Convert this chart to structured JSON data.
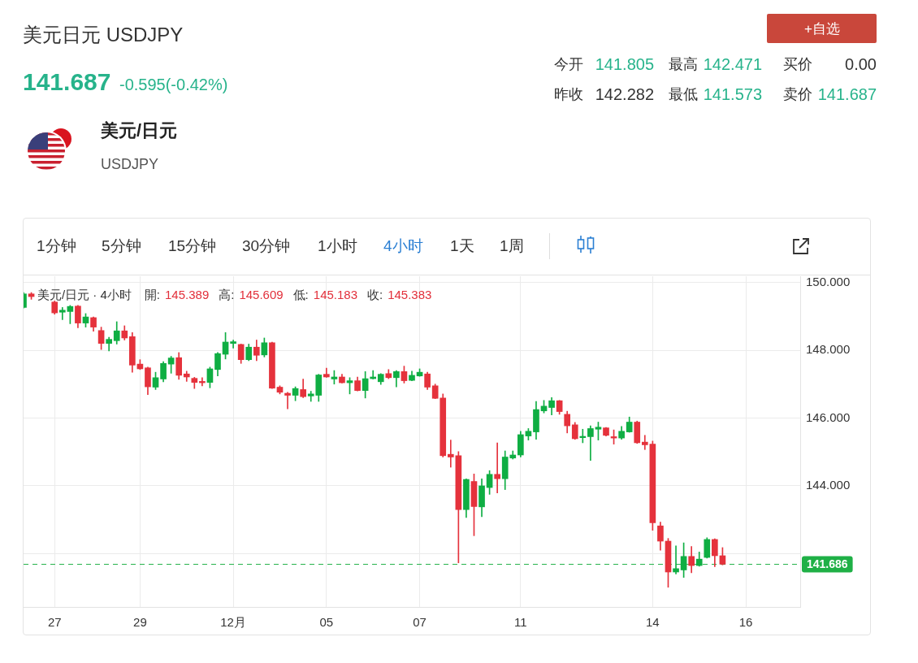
{
  "chart_data": {
    "type": "candlestick",
    "title": "美元日元 USDJPY",
    "subtitle": "141.687",
    "annotations": [
      "-0.595(-0.42%)",
      "今开",
      "141.805",
      "最高",
      "142.471",
      "买价",
      "0.00",
      "昨收",
      "142.282",
      "最低",
      "141.573",
      "卖价",
      "141.687",
      "+自选",
      "美元/日元",
      "USDJPY",
      "1分钟",
      "5分钟",
      "15分钟",
      "30分钟",
      "1小时",
      "4小时",
      "1天",
      "1周",
      "美元/日元 · 4小时",
      "開: 145.389",
      "高: 145.609",
      "低: 145.183",
      "收: 145.383"
    ],
    "categories": [
      null,
      null,
      null,
      null,
      "27",
      null,
      null,
      null,
      null,
      null,
      null,
      null,
      null,
      null,
      null,
      "29",
      null,
      null,
      null,
      null,
      null,
      null,
      null,
      null,
      null,
      null,
      null,
      "12月",
      null,
      null,
      null,
      null,
      null,
      null,
      null,
      null,
      null,
      null,
      null,
      "05",
      null,
      null,
      null,
      null,
      null,
      null,
      null,
      null,
      null,
      null,
      null,
      "07",
      null,
      null,
      null,
      null,
      null,
      null,
      null,
      null,
      null,
      null,
      null,
      null,
      "11",
      null,
      null,
      null,
      null,
      null,
      null,
      null,
      null,
      null,
      null,
      null,
      null,
      null,
      null,
      null,
      null,
      "14",
      null,
      null,
      null,
      null,
      null,
      null,
      null,
      null,
      null,
      null,
      null,
      "16",
      null,
      null,
      null,
      null,
      null,
      null,
      null
    ],
    "ohlc": [
      [
        149.26,
        149.7,
        149.24,
        149.66
      ],
      [
        149.66,
        149.7,
        149.5,
        149.58
      ],
      null,
      null,
      [
        149.42,
        149.45,
        149.06,
        149.1
      ],
      [
        149.12,
        149.26,
        148.9,
        149.18
      ],
      [
        149.14,
        149.32,
        148.78,
        149.29
      ],
      [
        149.3,
        149.32,
        148.66,
        148.8
      ],
      [
        148.8,
        149.08,
        148.68,
        148.98
      ],
      [
        148.96,
        148.98,
        148.56,
        148.68
      ],
      [
        148.58,
        148.68,
        148.02,
        148.2
      ],
      [
        148.2,
        148.38,
        147.98,
        148.32
      ],
      [
        148.28,
        148.84,
        148.18,
        148.57
      ],
      [
        148.57,
        148.72,
        148.3,
        148.36
      ],
      [
        148.4,
        148.52,
        147.35,
        147.56
      ],
      [
        147.59,
        147.72,
        147.43,
        147.45
      ],
      [
        147.48,
        147.5,
        146.69,
        146.92
      ],
      [
        146.91,
        147.35,
        146.84,
        147.19
      ],
      [
        147.15,
        147.66,
        147.07,
        147.61
      ],
      [
        147.59,
        147.82,
        147.32,
        147.77
      ],
      [
        147.78,
        147.93,
        147.14,
        147.26
      ],
      [
        147.3,
        147.38,
        147.08,
        147.21
      ],
      [
        147.17,
        147.2,
        146.87,
        147.05
      ],
      [
        147.08,
        147.19,
        146.95,
        147.04
      ],
      [
        147.05,
        147.5,
        146.89,
        147.45
      ],
      [
        147.43,
        147.93,
        147.24,
        147.9
      ],
      [
        147.88,
        148.52,
        147.74,
        148.24
      ],
      [
        148.2,
        148.3,
        148.06,
        148.25
      ],
      [
        148.17,
        148.18,
        147.61,
        147.72
      ],
      [
        147.72,
        148.18,
        147.69,
        148.09
      ],
      [
        148.09,
        148.3,
        147.69,
        147.85
      ],
      [
        147.86,
        148.36,
        147.8,
        148.22
      ],
      [
        148.22,
        148.24,
        146.87,
        146.88
      ],
      [
        146.91,
        146.95,
        146.71,
        146.76
      ],
      [
        146.73,
        146.76,
        146.27,
        146.67
      ],
      [
        146.67,
        146.92,
        146.51,
        146.87
      ],
      [
        146.84,
        147.15,
        146.6,
        146.63
      ],
      [
        146.65,
        146.79,
        146.49,
        146.71
      ],
      [
        146.67,
        147.29,
        146.49,
        147.27
      ],
      [
        147.29,
        147.47,
        147.2,
        147.21
      ],
      [
        147.15,
        147.4,
        147.0,
        147.21
      ],
      [
        147.21,
        147.29,
        147.03,
        147.04
      ],
      [
        147.04,
        147.19,
        146.71,
        147.1
      ],
      [
        147.1,
        147.21,
        146.8,
        146.81
      ],
      [
        146.81,
        147.37,
        146.59,
        147.16
      ],
      [
        147.16,
        147.4,
        147.15,
        147.21
      ],
      [
        147.07,
        147.31,
        146.99,
        147.29
      ],
      [
        147.31,
        147.43,
        147.16,
        147.19
      ],
      [
        147.19,
        147.4,
        146.92,
        147.37
      ],
      [
        147.37,
        147.53,
        147.03,
        147.1
      ],
      [
        147.11,
        147.38,
        147.1,
        147.26
      ],
      [
        147.24,
        147.45,
        147.23,
        147.35
      ],
      [
        147.3,
        147.35,
        146.84,
        146.91
      ],
      [
        146.95,
        147.0,
        146.57,
        146.58
      ],
      [
        146.59,
        146.71,
        144.85,
        144.89
      ],
      [
        144.93,
        145.35,
        144.55,
        144.85
      ],
      [
        144.89,
        145.01,
        141.73,
        143.3
      ],
      [
        143.3,
        144.21,
        143.07,
        144.19
      ],
      [
        144.13,
        144.35,
        142.53,
        143.39
      ],
      [
        143.38,
        144.21,
        143.09,
        144.0
      ],
      [
        143.95,
        144.45,
        143.75,
        144.34
      ],
      [
        144.34,
        145.27,
        143.79,
        144.21
      ],
      [
        144.21,
        145.03,
        143.89,
        144.85
      ],
      [
        144.82,
        145.03,
        144.79,
        144.91
      ],
      [
        144.91,
        145.61,
        144.85,
        145.51
      ],
      [
        145.47,
        145.69,
        145.35,
        145.61
      ],
      [
        145.59,
        146.49,
        145.37,
        146.25
      ],
      [
        146.21,
        146.52,
        146.15,
        146.35
      ],
      [
        146.31,
        146.6,
        146.09,
        146.51
      ],
      [
        146.51,
        146.52,
        146.11,
        146.19
      ],
      [
        146.11,
        146.2,
        145.56,
        145.77
      ],
      [
        145.8,
        145.87,
        145.37,
        145.39
      ],
      [
        145.42,
        145.67,
        145.27,
        145.46
      ],
      [
        145.45,
        145.77,
        144.75,
        145.69
      ],
      [
        145.67,
        145.88,
        145.35,
        145.73
      ],
      [
        145.71,
        145.72,
        145.47,
        145.49
      ],
      [
        145.45,
        145.65,
        145.23,
        145.41
      ],
      [
        145.41,
        145.75,
        145.37,
        145.61
      ],
      [
        145.59,
        146.03,
        145.58,
        145.88
      ],
      [
        145.88,
        145.91,
        145.25,
        145.27
      ],
      [
        145.29,
        145.49,
        145.07,
        145.21
      ],
      [
        145.23,
        145.32,
        142.69,
        142.91
      ],
      [
        142.82,
        142.93,
        142.1,
        142.37
      ],
      [
        142.37,
        142.45,
        141.01,
        141.46
      ],
      [
        141.46,
        142.23,
        141.4,
        141.56
      ],
      [
        141.52,
        142.32,
        141.3,
        141.92
      ],
      [
        141.92,
        142.21,
        141.44,
        141.65
      ],
      [
        141.65,
        142.05,
        141.63,
        141.84
      ],
      [
        141.89,
        142.47,
        141.87,
        142.42
      ],
      [
        142.42,
        142.44,
        141.62,
        141.94
      ],
      [
        141.94,
        142.18,
        141.67,
        141.69
      ],
      null,
      null,
      null,
      null,
      null,
      null,
      null,
      null,
      null,
      null
    ],
    "colors": [
      "#0fae43",
      "#e5323c",
      null,
      null,
      "#e5323c",
      "#0fae43",
      "#0fae43",
      "#e5323c",
      "#0fae43",
      "#e5323c",
      "#e5323c",
      "#0fae43",
      "#0fae43",
      "#e5323c",
      "#e5323c",
      "#e5323c",
      "#e5323c",
      "#0fae43",
      "#0fae43",
      "#0fae43",
      "#e5323c",
      "#e5323c",
      "#e5323c",
      "#e5323c",
      "#0fae43",
      "#0fae43",
      "#0fae43",
      "#0fae43",
      "#e5323c",
      "#0fae43",
      "#e5323c",
      "#0fae43",
      "#e5323c",
      "#e5323c",
      "#e5323c",
      "#0fae43",
      "#e5323c",
      "#0fae43",
      "#0fae43",
      "#e5323c",
      "#0fae43",
      "#e5323c",
      "#0fae43",
      "#e5323c",
      "#0fae43",
      "#0fae43",
      "#0fae43",
      "#e5323c",
      "#0fae43",
      "#e5323c",
      "#0fae43",
      "#0fae43",
      "#e5323c",
      "#e5323c",
      "#e5323c",
      "#e5323c",
      "#e5323c",
      "#0fae43",
      "#e5323c",
      "#0fae43",
      "#0fae43",
      "#e5323c",
      "#0fae43",
      "#0fae43",
      "#0fae43",
      "#0fae43",
      "#0fae43",
      "#0fae43",
      "#0fae43",
      "#e5323c",
      "#e5323c",
      "#e5323c",
      "#0fae43",
      "#0fae43",
      "#0fae43",
      "#e5323c",
      "#e5323c",
      "#0fae43",
      "#0fae43",
      "#e5323c",
      "#e5323c",
      "#e5323c",
      "#e5323c",
      "#e5323c",
      "#0fae43",
      "#0fae43",
      "#e5323c",
      "#0fae43",
      "#0fae43",
      "#e5323c",
      "#e5323c",
      null,
      null,
      null,
      null,
      null,
      null,
      null,
      null,
      null,
      null
    ],
    "ylim": [
      140.43,
      150.18
    ],
    "yticks": [
      {
        "value": 142,
        "label": null
      },
      {
        "value": 144,
        "label": "144.000"
      },
      {
        "value": 146,
        "label": "146.000"
      },
      {
        "value": 148,
        "label": "148.000"
      },
      {
        "value": 150,
        "label": "150.000"
      }
    ],
    "grid": true,
    "ref_lines": [
      {
        "axis": "y",
        "value": 141.686,
        "label": "141.686",
        "color": "#1fb046",
        "line_style": "dashed"
      }
    ]
  }
}
